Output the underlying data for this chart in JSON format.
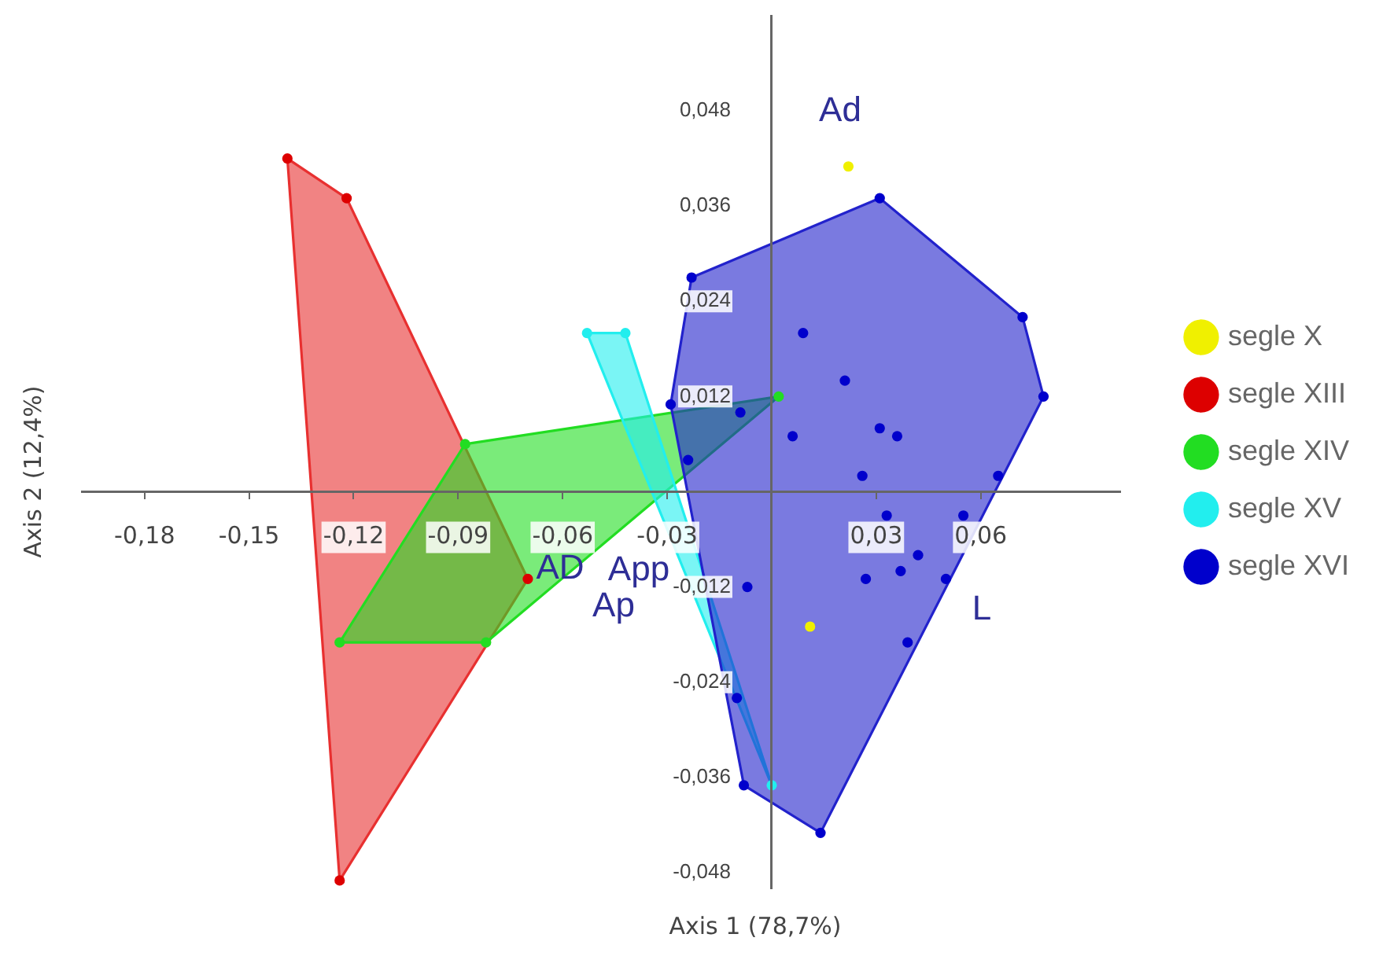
{
  "chart_data": {
    "type": "scatter",
    "xlabel": "Axis 1 (78,7%)",
    "ylabel": "Axis 2 (12,4%)",
    "xlim": [
      -0.198,
      0.1
    ],
    "ylim": [
      -0.05,
      0.06
    ],
    "xticks": [
      {
        "value": -0.18,
        "label": "-0,18"
      },
      {
        "value": -0.15,
        "label": "-0,15"
      },
      {
        "value": -0.12,
        "label": "-0,12"
      },
      {
        "value": -0.09,
        "label": "-0,09"
      },
      {
        "value": -0.06,
        "label": "-0,06"
      },
      {
        "value": -0.03,
        "label": "-0,03"
      },
      {
        "value": 0.03,
        "label": "0,03"
      },
      {
        "value": 0.06,
        "label": "0,06"
      }
    ],
    "yticks": [
      {
        "value": 0.048,
        "label": "0,048"
      },
      {
        "value": 0.036,
        "label": "0,036"
      },
      {
        "value": 0.024,
        "label": "0,024"
      },
      {
        "value": 0.012,
        "label": "0,012"
      },
      {
        "value": -0.012,
        "label": "-0,012"
      },
      {
        "value": -0.024,
        "label": "-0,024"
      },
      {
        "value": -0.036,
        "label": "-0,036"
      },
      {
        "value": -0.048,
        "label": "-0,048"
      }
    ],
    "legend": "right",
    "series": [
      {
        "type": "area",
        "color": "#e83030",
        "x": [
          -0.139,
          -0.122,
          -0.07,
          -0.124,
          -0.139
        ],
        "values": [
          0.042,
          0.037,
          -0.011,
          -0.049,
          0.042
        ]
      },
      {
        "type": "area",
        "color": "#22dd22",
        "x": [
          -0.088,
          0.002,
          -0.082,
          -0.124,
          -0.088
        ],
        "values": [
          0.006,
          0.012,
          -0.019,
          -0.019,
          0.006
        ]
      },
      {
        "type": "area",
        "color": "#22eeee",
        "x": [
          -0.053,
          -0.042,
          0.0,
          -0.053
        ],
        "values": [
          0.02,
          0.02,
          -0.037,
          0.02
        ]
      },
      {
        "type": "area",
        "color": "#2222cc",
        "x": [
          -0.023,
          0.031,
          0.072,
          0.078,
          0.014,
          -0.008,
          -0.029,
          -0.023
        ],
        "values": [
          0.027,
          0.037,
          0.022,
          0.012,
          -0.043,
          -0.037,
          0.011,
          0.027
        ]
      },
      {
        "name": "segle X",
        "color": "#f0f000",
        "marker": "circle",
        "x": [
          0.022,
          0.011
        ],
        "values": [
          0.041,
          -0.017
        ]
      },
      {
        "name": "segle XIII",
        "color": "#dd0000",
        "marker": "circle",
        "x": [
          -0.139,
          -0.122,
          -0.07,
          -0.124
        ],
        "values": [
          0.042,
          0.037,
          -0.011,
          -0.049
        ]
      },
      {
        "name": "segle XIV",
        "color": "#22dd22",
        "marker": "circle",
        "x": [
          -0.088,
          0.002,
          -0.082,
          -0.124
        ],
        "values": [
          0.006,
          0.012,
          -0.019,
          -0.019
        ]
      },
      {
        "name": "segle XV",
        "color": "#22eeee",
        "marker": "circle",
        "x": [
          -0.053,
          -0.042,
          0.0
        ],
        "values": [
          0.02,
          0.02,
          -0.037
        ]
      },
      {
        "name": "segle XVI",
        "color": "#0000cc",
        "marker": "circle",
        "x": [
          -0.023,
          0.031,
          0.072,
          0.078,
          0.065,
          0.014,
          -0.008,
          -0.01,
          -0.029,
          -0.024,
          0.009,
          0.021,
          -0.009,
          0.031,
          0.036,
          0.006,
          0.026,
          0.033,
          0.055,
          0.042,
          0.037,
          0.027,
          0.05,
          -0.007,
          0.039
        ],
        "values": [
          0.027,
          0.037,
          0.022,
          0.012,
          0.002,
          -0.043,
          -0.037,
          -0.026,
          0.011,
          0.004,
          0.02,
          0.014,
          0.01,
          0.008,
          0.007,
          0.007,
          0.002,
          -0.003,
          -0.003,
          -0.008,
          -0.01,
          -0.011,
          -0.011,
          -0.012,
          -0.019
        ]
      }
    ],
    "annotations": [
      "Ad",
      "AD",
      "App",
      "Ap",
      "L"
    ]
  }
}
